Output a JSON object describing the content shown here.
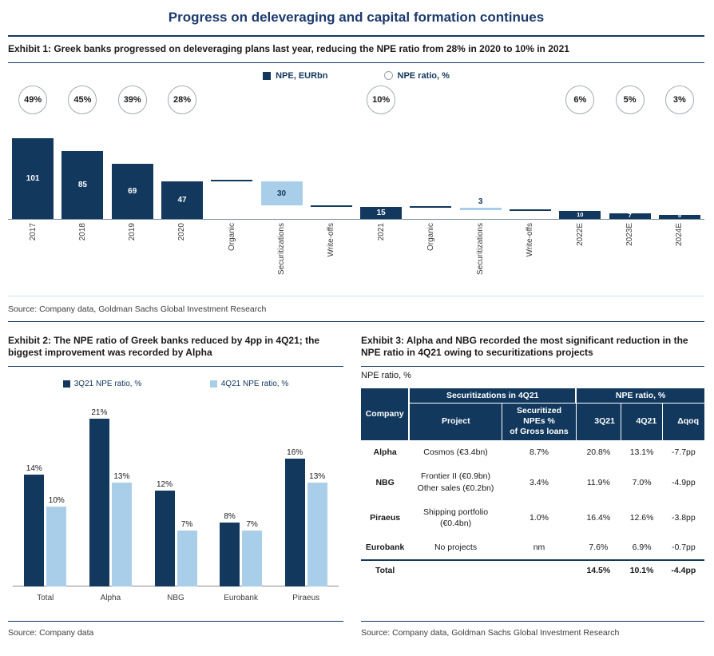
{
  "title": "Progress on deleveraging and capital formation continues",
  "colors": {
    "navy": "#12385e",
    "light_blue": "#a9cee9",
    "title_navy": "#1c3a6e"
  },
  "exhibit1": {
    "heading": "Exhibit 1: Greek banks progressed on deleveraging plans last year, reducing the NPE ratio from 28% in 2020 to 10% in 2021",
    "legend": [
      {
        "label": "NPE, EURbn",
        "swatch": "navy-square"
      },
      {
        "label": "NPE ratio, %",
        "swatch": "outline-circle"
      }
    ],
    "source": "Source: Company data, Goldman Sachs Global Investment Research",
    "chart_data": {
      "type": "bar",
      "subtype": "waterfall",
      "unit": "EURbn",
      "ylim": [
        0,
        105
      ],
      "bars": [
        {
          "label": "2017",
          "top": 101,
          "bottom": 0,
          "display": "101",
          "ratio": "49%",
          "style": "dark"
        },
        {
          "label": "2018",
          "top": 85,
          "bottom": 0,
          "display": "85",
          "ratio": "45%",
          "style": "dark"
        },
        {
          "label": "2019",
          "top": 69,
          "bottom": 0,
          "display": "69",
          "ratio": "39%",
          "style": "dark"
        },
        {
          "label": "2020",
          "top": 47,
          "bottom": 0,
          "display": "47",
          "ratio": "28%",
          "style": "dark"
        },
        {
          "label": "Organic",
          "top": 48,
          "bottom": 47,
          "display": "",
          "style": "line"
        },
        {
          "label": "Securitizations",
          "top": 47,
          "bottom": 17,
          "display": "30",
          "style": "light"
        },
        {
          "label": "Write-offs",
          "top": 17,
          "bottom": 15,
          "display": "",
          "style": "line"
        },
        {
          "label": "2021",
          "top": 15,
          "bottom": 0,
          "display": "15",
          "ratio": "10%",
          "style": "dark"
        },
        {
          "label": "Organic",
          "top": 15,
          "bottom": 14,
          "display": "",
          "style": "line"
        },
        {
          "label": "Securitizations",
          "top": 14,
          "bottom": 11,
          "display": "3",
          "style": "light"
        },
        {
          "label": "Write-offs",
          "top": 11,
          "bottom": 10,
          "display": "",
          "style": "line"
        },
        {
          "label": "2022E",
          "top": 10,
          "bottom": 0,
          "display": "10",
          "ratio": "6%",
          "style": "dark"
        },
        {
          "label": "2023E",
          "top": 7,
          "bottom": 0,
          "display": "7",
          "ratio": "5%",
          "style": "dark"
        },
        {
          "label": "2024E",
          "top": 5,
          "bottom": 0,
          "display": "5",
          "ratio": "3%",
          "style": "dark"
        }
      ]
    }
  },
  "exhibit2": {
    "heading": "Exhibit 2: The NPE ratio of Greek banks reduced by 4pp in 4Q21; the biggest improvement was recorded by Alpha",
    "source": "Source: Company data",
    "chart_data": {
      "type": "bar",
      "categories": [
        "Total",
        "Alpha",
        "NBG",
        "Eurobank",
        "Piraeus"
      ],
      "series": [
        {
          "name": "3Q21 NPE ratio, %",
          "style": "dark",
          "values": [
            14,
            21,
            12,
            8,
            16
          ]
        },
        {
          "name": "4Q21 NPE ratio, %",
          "style": "light",
          "values": [
            10,
            13,
            7,
            7,
            13
          ]
        }
      ],
      "value_suffix": "%",
      "ylim": [
        0,
        22
      ]
    }
  },
  "exhibit3": {
    "heading": "Exhibit 3: Alpha and NBG recorded the most significant reduction in the NPE ratio in 4Q21 owing to securitizations projects",
    "subtitle": "NPE ratio, %",
    "source": "Source: Company data, Goldman Sachs Global Investment Research",
    "table": {
      "header": {
        "company": "Company",
        "group1": "Securitizations in 4Q21",
        "group2": "NPE ratio, %",
        "cols": [
          "Project",
          "Securitized NPEs %\nof Gross loans",
          "3Q21",
          "4Q21",
          "Δqoq"
        ]
      },
      "rows": [
        {
          "company": "Alpha",
          "project": "Cosmos (€3.4bn)",
          "securitized": "8.7%",
          "q3": "20.8%",
          "q4": "13.1%",
          "qoq": "-7.7pp",
          "is_total": false
        },
        {
          "company": "NBG",
          "project": "Frontier II (€0.9bn)\nOther sales (€0.2bn)",
          "securitized": "3.4%",
          "q3": "11.9%",
          "q4": "7.0%",
          "qoq": "-4.9pp",
          "is_total": false
        },
        {
          "company": "Piraeus",
          "project": "Shipping portfolio\n(€0.4bn)",
          "securitized": "1.0%",
          "q3": "16.4%",
          "q4": "12.6%",
          "qoq": "-3.8pp",
          "is_total": false
        },
        {
          "company": "Eurobank",
          "project": "No projects",
          "securitized": "nm",
          "q3": "7.6%",
          "q4": "6.9%",
          "qoq": "-0.7pp",
          "is_total": false
        },
        {
          "company": "Total",
          "project": "",
          "securitized": "",
          "q3": "14.5%",
          "q4": "10.1%",
          "qoq": "-4.4pp",
          "is_total": true
        }
      ]
    }
  }
}
